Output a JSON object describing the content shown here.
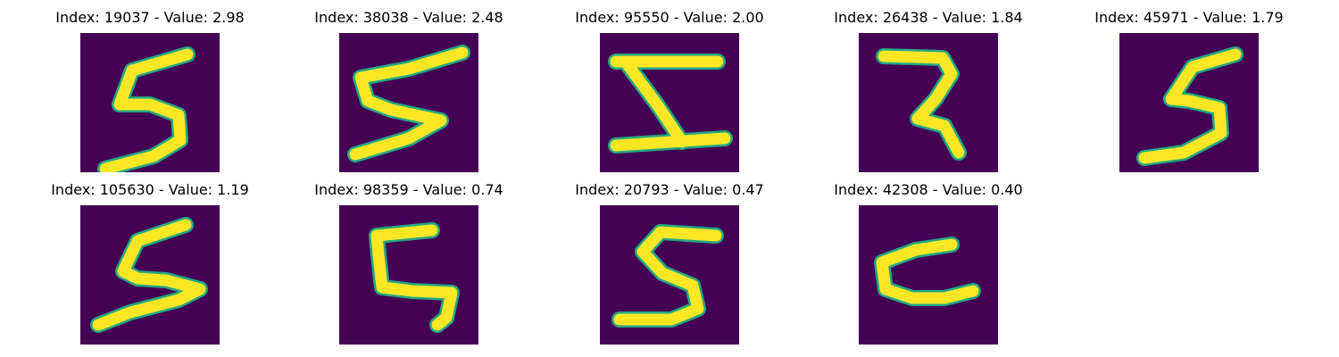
{
  "colors": {
    "background": "#440154",
    "stroke_core": "#fde725",
    "stroke_edge": "#22a884"
  },
  "panels": [
    {
      "title": "Index: 19037 - Value: 2.98",
      "glyph": "5"
    },
    {
      "title": "Index: 38038 - Value: 2.48",
      "glyph": "5"
    },
    {
      "title": "Index: 95550 - Value: 2.00",
      "glyph": "Z-like"
    },
    {
      "title": "Index: 26438 - Value: 1.84",
      "glyph": "2-like"
    },
    {
      "title": "Index: 45971 - Value: 1.79",
      "glyph": "5"
    },
    {
      "title": "Index: 105630 - Value: 1.19",
      "glyph": "5"
    },
    {
      "title": "Index: 98359 - Value: 0.74",
      "glyph": "5"
    },
    {
      "title": "Index: 20793 - Value: 0.47",
      "glyph": "5"
    },
    {
      "title": "Index: 42308 - Value: 0.40",
      "glyph": "5"
    }
  ]
}
